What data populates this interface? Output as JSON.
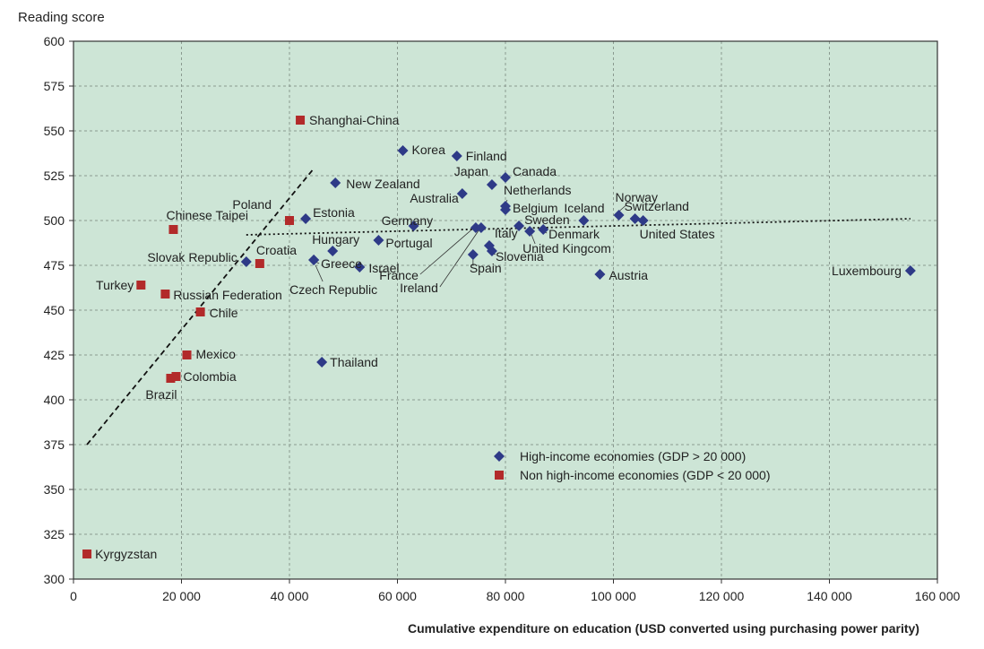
{
  "chart_data": {
    "type": "scatter",
    "title": "",
    "xlabel": "Cumulative expenditure on education (USD converted using purchasing power parity)",
    "ylabel": "Reading score",
    "xlim": [
      0,
      160000
    ],
    "ylim": [
      300,
      600
    ],
    "x_ticks": [
      0,
      20000,
      40000,
      60000,
      80000,
      100000,
      120000,
      140000,
      160000
    ],
    "x_tick_labels": [
      "0",
      "20 000",
      "40 000",
      "60 000",
      "80 000",
      "100 000",
      "120 000",
      "140 000",
      "160 000"
    ],
    "y_ticks": [
      300,
      325,
      350,
      375,
      400,
      425,
      450,
      475,
      500,
      525,
      550,
      575,
      600
    ],
    "grid": true,
    "background_color": "#cde5d6",
    "legend_placement": "bottom-center",
    "series": [
      {
        "name": "High-income economies (GDP > 20 000)",
        "marker": "diamond",
        "color": "#2e3a87",
        "points": [
          {
            "label": "Korea",
            "x": 61000,
            "y": 539
          },
          {
            "label": "Finland",
            "x": 71000,
            "y": 536
          },
          {
            "label": "Canada",
            "x": 80000,
            "y": 524
          },
          {
            "label": "Japan",
            "x": 77500,
            "y": 520
          },
          {
            "label": "New Zealand",
            "x": 48500,
            "y": 521
          },
          {
            "label": "Australia",
            "x": 72000,
            "y": 515
          },
          {
            "label": "Netherlands",
            "x": 80000,
            "y": 508
          },
          {
            "label": "Belgium",
            "x": 80000,
            "y": 506
          },
          {
            "label": "Norway",
            "x": 101000,
            "y": 503
          },
          {
            "label": "Iceland",
            "x": 94500,
            "y": 500
          },
          {
            "label": "Switzerland",
            "x": 104000,
            "y": 501
          },
          {
            "label": "United States",
            "x": 105500,
            "y": 500
          },
          {
            "label": "Estonia",
            "x": 43000,
            "y": 501
          },
          {
            "label": "Germany",
            "x": 63000,
            "y": 497
          },
          {
            "label": "Sweden",
            "x": 82500,
            "y": 497
          },
          {
            "label": "Denmark",
            "x": 87000,
            "y": 495
          },
          {
            "label": "United Kingcom",
            "x": 84500,
            "y": 494
          },
          {
            "label": "France",
            "x": 74500,
            "y": 496
          },
          {
            "label": "Ireland",
            "x": 75500,
            "y": 496
          },
          {
            "label": "Portugal",
            "x": 56500,
            "y": 489
          },
          {
            "label": "Italy",
            "x": 77000,
            "y": 486
          },
          {
            "label": "Slovenia",
            "x": 77500,
            "y": 483
          },
          {
            "label": "Spain",
            "x": 74000,
            "y": 481
          },
          {
            "label": "Hungary",
            "x": 48000,
            "y": 483
          },
          {
            "label": "Greece",
            "x": 44500,
            "y": 478
          },
          {
            "label": "Slovak Republic",
            "x": 32000,
            "y": 477
          },
          {
            "label": "Czech Republic",
            "x": 44500,
            "y": 478
          },
          {
            "label": "Israel",
            "x": 53000,
            "y": 474
          },
          {
            "label": "Austria",
            "x": 97500,
            "y": 470
          },
          {
            "label": "Luxembourg",
            "x": 155000,
            "y": 472
          },
          {
            "label": "Thailand",
            "x": 46000,
            "y": 421
          }
        ]
      },
      {
        "name": "Non high-income economies (GDP < 20 000)",
        "marker": "square",
        "color": "#b22a2a",
        "points": [
          {
            "label": "Shanghai-China",
            "x": 42000,
            "y": 556
          },
          {
            "label": "Poland",
            "x": 40000,
            "y": 500
          },
          {
            "label": "Chinese Taipei",
            "x": 18500,
            "y": 495
          },
          {
            "label": "Croatia",
            "x": 34500,
            "y": 476
          },
          {
            "label": "Turkey",
            "x": 12500,
            "y": 464
          },
          {
            "label": "Russian Federation",
            "x": 17000,
            "y": 459
          },
          {
            "label": "Chile",
            "x": 23500,
            "y": 449
          },
          {
            "label": "Mexico",
            "x": 21000,
            "y": 425
          },
          {
            "label": "Colombia",
            "x": 19000,
            "y": 413
          },
          {
            "label": "Brazil",
            "x": 18000,
            "y": 412
          },
          {
            "label": "Kyrgyzstan",
            "x": 2500,
            "y": 314
          }
        ]
      }
    ],
    "trend_lines": [
      {
        "style": "dashed",
        "points": [
          [
            2500,
            375
          ],
          [
            44500,
            529
          ]
        ]
      },
      {
        "style": "dotted",
        "points": [
          [
            32000,
            492
          ],
          [
            155000,
            501
          ]
        ]
      }
    ]
  }
}
